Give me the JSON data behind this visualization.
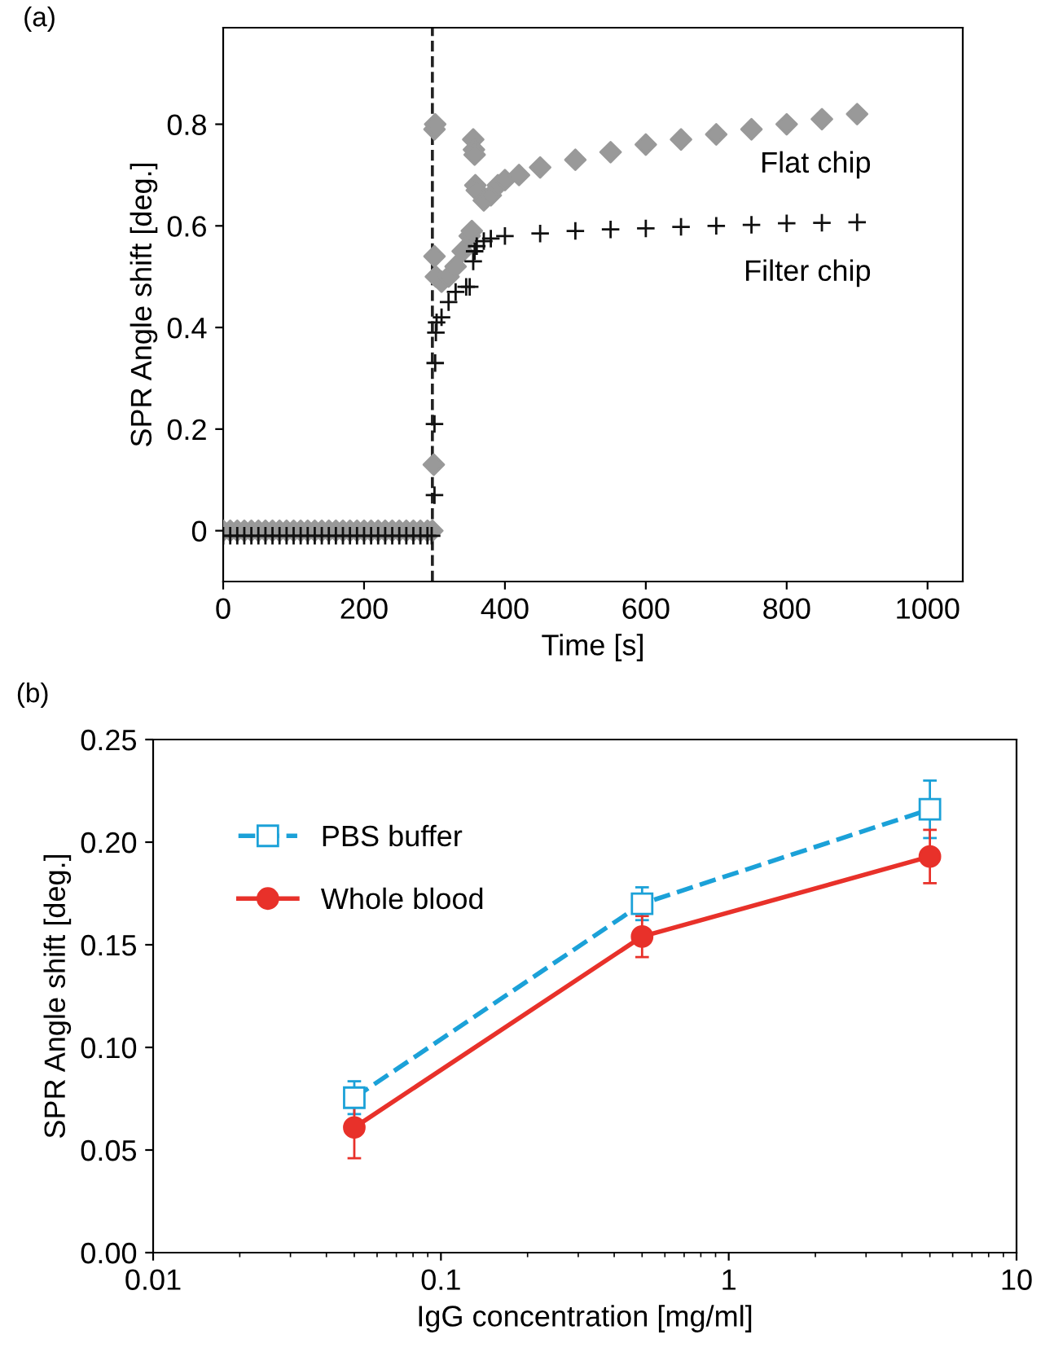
{
  "chart_data": [
    {
      "type": "scatter",
      "title": "(a)",
      "xlabel": "Time [s]",
      "ylabel": "SPR Angle shift [deg.]",
      "xlim": [
        0,
        1050
      ],
      "ylim": [
        -0.1,
        0.99
      ],
      "xticks": [
        0,
        200,
        400,
        600,
        800,
        1000
      ],
      "yticks": [
        0,
        0.2,
        0.4,
        0.6,
        0.8
      ],
      "grid": false,
      "legend": false,
      "ref_lines": [
        {
          "axis": "x",
          "value": 297,
          "color": "#222222",
          "line_style": "dashed"
        }
      ],
      "series": [
        {
          "name": "Flat chip",
          "color": "#999999",
          "marker": "diamond",
          "x": [
            0,
            10,
            20,
            30,
            40,
            50,
            60,
            70,
            80,
            90,
            100,
            110,
            120,
            130,
            140,
            150,
            160,
            170,
            180,
            190,
            200,
            210,
            220,
            230,
            240,
            250,
            260,
            270,
            280,
            290,
            297,
            299,
            300,
            300,
            301,
            302,
            310,
            320,
            330,
            340,
            350,
            353,
            355,
            356,
            357,
            358,
            360,
            370,
            380,
            390,
            400,
            420,
            450,
            500,
            550,
            600,
            650,
            700,
            750,
            800,
            850,
            900
          ],
          "values": [
            0,
            0,
            0,
            0,
            0,
            0,
            0,
            0,
            0,
            0,
            0,
            0,
            0,
            0,
            0,
            0,
            0,
            0,
            0,
            0,
            0,
            0,
            0,
            0,
            0,
            0,
            0,
            0,
            0,
            0,
            0,
            0.13,
            0.54,
            0.79,
            0.8,
            0.5,
            0.49,
            0.5,
            0.52,
            0.55,
            0.58,
            0.59,
            0.77,
            0.75,
            0.74,
            0.68,
            0.67,
            0.65,
            0.66,
            0.68,
            0.69,
            0.7,
            0.715,
            0.73,
            0.745,
            0.76,
            0.77,
            0.78,
            0.79,
            0.8,
            0.81,
            0.82
          ]
        },
        {
          "name": "Filter chip",
          "color": "#111111",
          "marker": "cross",
          "x": [
            0,
            10,
            20,
            30,
            40,
            50,
            60,
            70,
            80,
            90,
            100,
            110,
            120,
            130,
            140,
            150,
            160,
            170,
            180,
            190,
            200,
            210,
            220,
            230,
            240,
            250,
            260,
            270,
            280,
            290,
            296,
            300,
            300,
            301,
            302,
            303,
            310,
            320,
            330,
            345,
            350,
            355,
            357,
            360,
            370,
            380,
            400,
            450,
            500,
            550,
            600,
            650,
            700,
            750,
            800,
            850,
            900
          ],
          "values": [
            -0.01,
            -0.01,
            -0.01,
            -0.01,
            -0.01,
            -0.01,
            -0.01,
            -0.01,
            -0.01,
            -0.01,
            -0.01,
            -0.01,
            -0.01,
            -0.01,
            -0.01,
            -0.01,
            -0.01,
            -0.01,
            -0.01,
            -0.01,
            -0.01,
            -0.01,
            -0.01,
            -0.01,
            -0.01,
            -0.01,
            -0.01,
            -0.01,
            -0.01,
            -0.01,
            -0.01,
            0.07,
            0.21,
            0.33,
            0.39,
            0.41,
            0.42,
            0.45,
            0.47,
            0.48,
            0.48,
            0.53,
            0.55,
            0.56,
            0.57,
            0.575,
            0.58,
            0.585,
            0.59,
            0.593,
            0.595,
            0.598,
            0.6,
            0.602,
            0.605,
            0.606,
            0.607
          ]
        }
      ]
    },
    {
      "type": "line",
      "title": "(b)",
      "xlabel": "IgG concentration [mg/ml]",
      "ylabel": "SPR Angle shift [deg.]",
      "log": "x",
      "xlim": [
        0.01,
        10
      ],
      "ylim": [
        0,
        0.25
      ],
      "xticks": [
        0.01,
        0.1,
        1,
        10
      ],
      "yticks": [
        {
          "value": 0,
          "label": "0.00"
        },
        {
          "value": 0.05,
          "label": "0.05"
        },
        {
          "value": 0.1,
          "label": "0.10"
        },
        {
          "value": 0.15,
          "label": "0.15"
        },
        {
          "value": 0.2,
          "label": "0.20"
        },
        {
          "value": 0.25,
          "label": "0.25"
        }
      ],
      "grid": false,
      "legend": "top left",
      "x": [
        0.05,
        0.5,
        5
      ],
      "series": [
        {
          "name": "PBS buffer",
          "color": "#1ba1d8",
          "marker": "square",
          "line_style": "dashed",
          "values": [
            0.0755,
            0.17,
            0.216
          ],
          "errors": [
            0.008,
            0.008,
            0.014
          ]
        },
        {
          "name": "Whole blood",
          "color": "#e8312a",
          "marker": "circle",
          "line_style": "solid",
          "values": [
            0.061,
            0.154,
            0.193
          ],
          "errors": [
            0.015,
            0.01,
            0.013
          ]
        }
      ]
    }
  ]
}
